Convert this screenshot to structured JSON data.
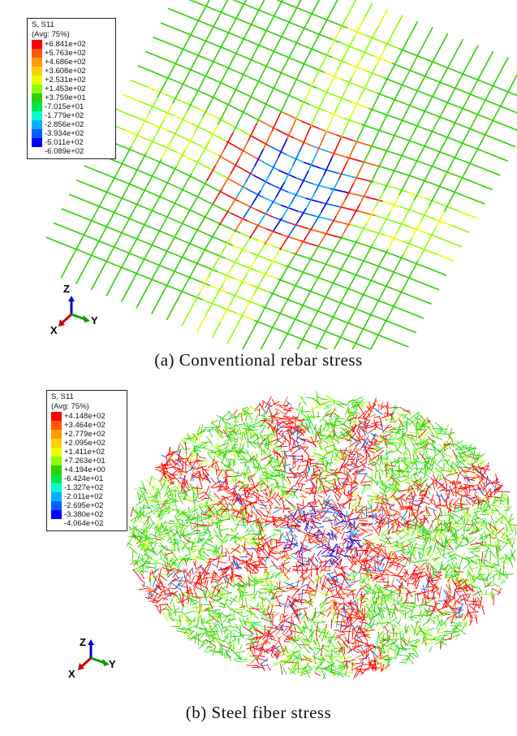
{
  "panel_a": {
    "legend": {
      "title": "S, S11",
      "subtitle": "(Avg: 75%)",
      "levels": [
        "+6.841e+02",
        "+5.763e+02",
        "+4.686e+02",
        "+3.608e+02",
        "+2.531e+02",
        "+1.453e+02",
        "+3.759e+01",
        "-7.015e+01",
        "-1.779e+02",
        "-2.856e+02",
        "-3.934e+02",
        "-5.011e+02",
        "-6.089e+02"
      ]
    },
    "caption": "(a) Conventional rebar stress",
    "triad": {
      "z": "Z",
      "y": "Y",
      "x": "X"
    }
  },
  "panel_b": {
    "legend": {
      "title": "S, S11",
      "subtitle": "(Avg: 75%)",
      "levels": [
        "+4.148e+02",
        "+3.464e+02",
        "+2.779e+02",
        "+2.095e+02",
        "+1.411e+02",
        "+7.263e+01",
        "+4.194e+00",
        "-6.424e+01",
        "-1.327e+02",
        "-2.011e+02",
        "-2.695e+02",
        "-3.380e+02",
        "-4.064e+02"
      ]
    },
    "caption": "(b) Steel fiber stress",
    "triad": {
      "z": "Z",
      "y": "Y",
      "x": "X"
    }
  },
  "contour_colors": [
    "#ff0000",
    "#ff5a00",
    "#ff9c00",
    "#ffd000",
    "#e6ff00",
    "#8cff00",
    "#2ed100",
    "#00e64d",
    "#00ffd0",
    "#00b0ff",
    "#0060ff",
    "#0000ff"
  ],
  "colors": {
    "triad_x": "#cc0000",
    "triad_y": "#00a000",
    "triad_z": "#0000cc"
  }
}
